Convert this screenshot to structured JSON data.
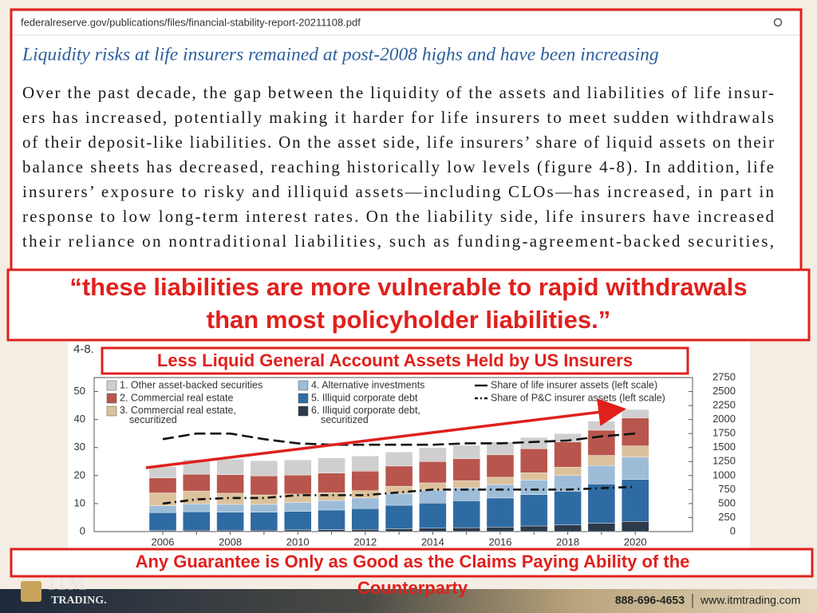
{
  "browser": {
    "url": "federalreserve.gov/publications/files/financial-stability-report-20211108.pdf"
  },
  "document": {
    "heading": "Liquidity risks at life insurers remained at post-2008 highs and have been increasing",
    "lines": [
      "Over the past decade, the gap between the liquidity of the assets and liabilities of life insur-",
      "ers has increased, potentially making it harder for life insurers to meet sudden withdrawals",
      "of their deposit-like liabilities. On the asset side, life insurers’ share of liquid assets on their",
      "balance sheets has decreased, reaching historically low levels (figure 4-8). In addition, life",
      "insurers’ exposure to risky and illiquid assets—including CLOs—has increased, in part in",
      "response to low long-term interest rates. On the liability side, life insurers have increased",
      "their reliance on nontraditional liabilities, such as funding-agreement-backed securities,"
    ]
  },
  "quote_lines": [
    "“these liabilities are more vulnerable to rapid withdrawals",
    "than most policyholder liabilities.”"
  ],
  "chart_data": {
    "type": "bar",
    "stacked": true,
    "figure_label": "4-8.",
    "title": "Less Liquid General Account Assets Held by US Insurers",
    "categories": [
      "2006",
      null,
      "2008",
      null,
      "2010",
      null,
      "2012",
      null,
      "2014",
      null,
      "2016",
      null,
      "2018",
      null,
      "2020"
    ],
    "series": [
      {
        "name": "1. Other asset-backed securities",
        "color": "#cfcfcf",
        "axis": "y2",
        "values": [
          200,
          260,
          280,
          270,
          270,
          270,
          270,
          250,
          250,
          240,
          230,
          200,
          150,
          160,
          150
        ]
      },
      {
        "name": "2. Commercial real estate",
        "color": "#b8564d",
        "axis": "y2",
        "values": [
          270,
          300,
          330,
          340,
          340,
          350,
          350,
          360,
          380,
          390,
          400,
          430,
          450,
          450,
          500
        ]
      },
      {
        "name": "3. Commercial real estate, securitized",
        "color": "#dcc29c",
        "axis": "y2",
        "values": [
          230,
          230,
          200,
          170,
          150,
          140,
          130,
          130,
          130,
          130,
          130,
          130,
          150,
          180,
          200
        ]
      },
      {
        "name": "4. Alternative investments",
        "color": "#9dbcd8",
        "axis": "y2",
        "values": [
          120,
          140,
          140,
          140,
          160,
          170,
          190,
          210,
          230,
          230,
          240,
          260,
          280,
          330,
          400
        ]
      },
      {
        "name": "5. Illiquid corporate debt",
        "color": "#2f6ba3",
        "axis": "y2",
        "values": [
          320,
          330,
          320,
          320,
          330,
          350,
          370,
          420,
          450,
          480,
          520,
          560,
          600,
          700,
          750
        ]
      },
      {
        "name": "6. Illiquid corporate debt, securitized",
        "color": "#2c3a4a",
        "axis": "y2",
        "values": [
          20,
          25,
          25,
          25,
          30,
          35,
          40,
          50,
          60,
          70,
          80,
          100,
          120,
          150,
          180
        ]
      },
      {
        "name": "Share of life insurer assets (left scale)",
        "type": "line",
        "dash": "dashed",
        "color": "#111111",
        "axis": "y",
        "values": [
          33,
          35,
          35,
          33,
          31.5,
          31,
          31,
          31,
          31,
          31.5,
          31.5,
          32,
          32.5,
          34,
          35
        ]
      },
      {
        "name": "Share of P&C insurer assets (left scale)",
        "type": "line",
        "dash": "dash-dot",
        "color": "#111111",
        "axis": "y",
        "values": [
          10,
          11.5,
          12,
          12,
          13,
          13,
          13,
          14,
          15,
          15,
          15,
          15,
          15,
          15.5,
          16
        ]
      }
    ],
    "ylim": [
      0,
      55
    ],
    "yticks": [
      0,
      10,
      20,
      30,
      40,
      50
    ],
    "y2lim": [
      0,
      2750
    ],
    "y2ticks": [
      0,
      250,
      500,
      750,
      1000,
      1250,
      1500,
      1750,
      2000,
      2250,
      2500,
      2750
    ]
  },
  "caption_lines": [
    "Any Guarantee is Only as Good as the Claims Paying Ability of the",
    "Counterparty"
  ],
  "footer": {
    "logo": "ITM",
    "logo_sub": "TRADING.",
    "phone": "888-696-4653",
    "website": "www.itmtrading.com"
  }
}
